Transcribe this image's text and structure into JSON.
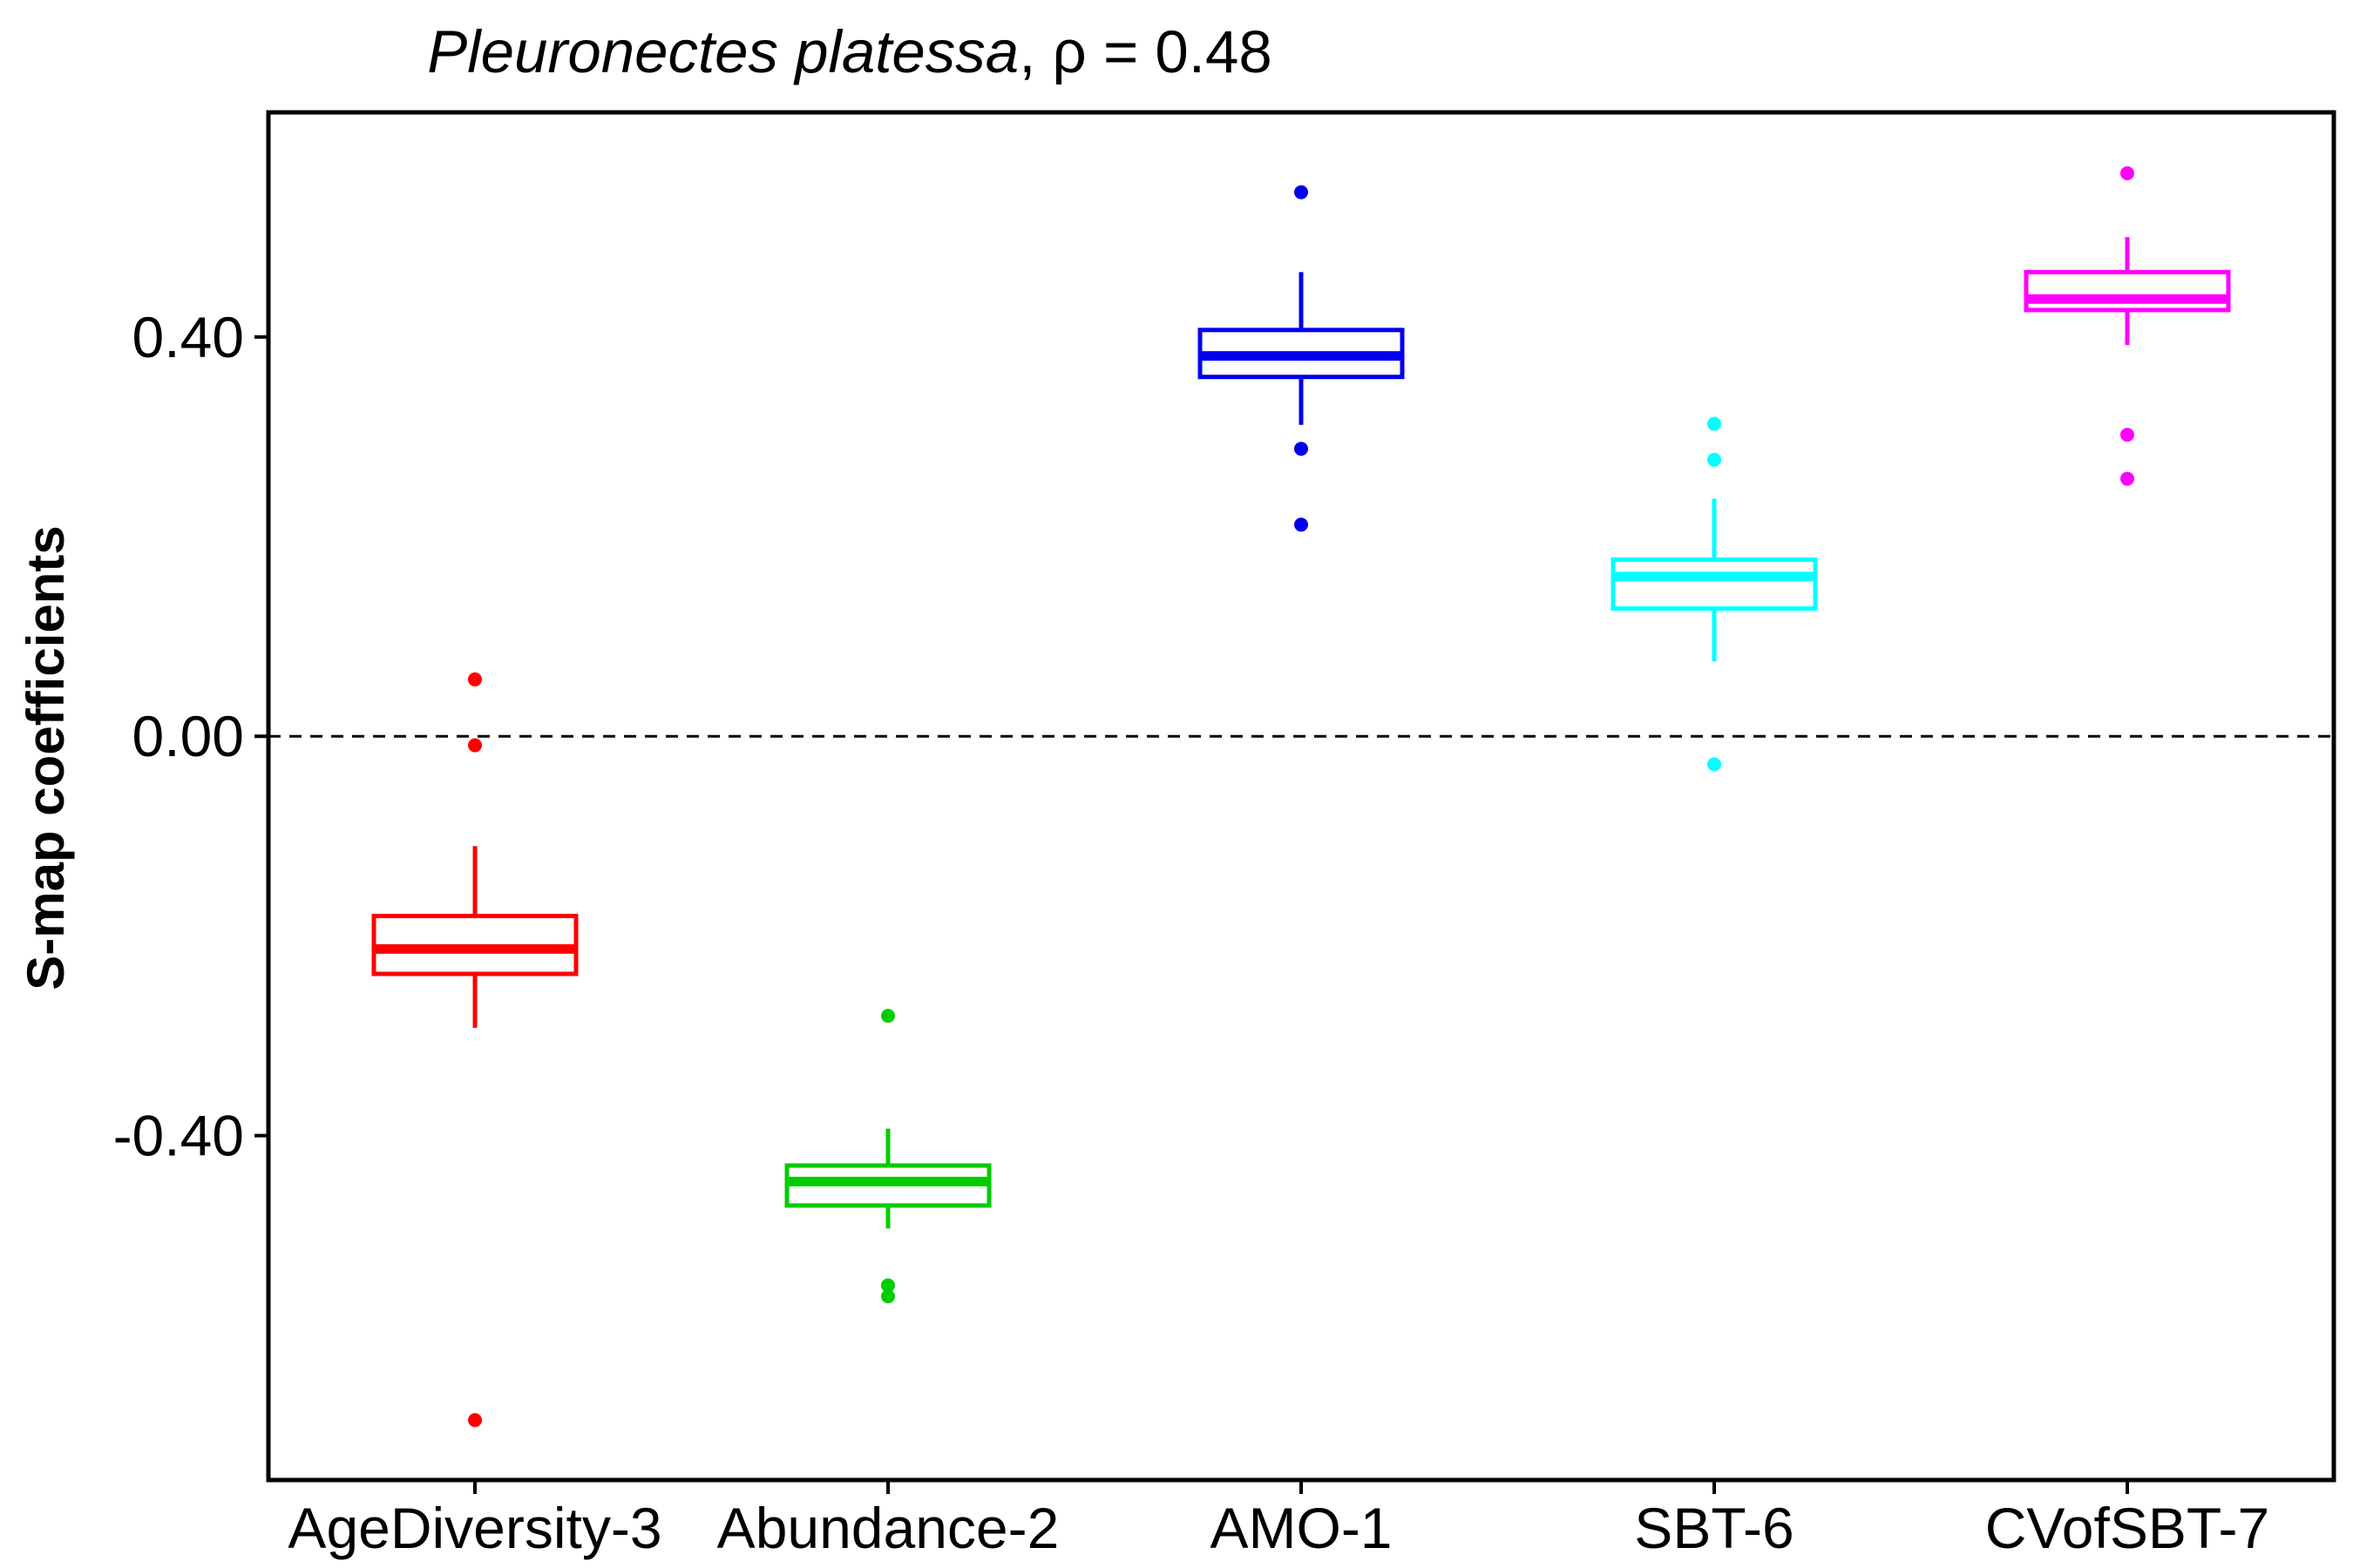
{
  "chart_data": {
    "type": "box",
    "title": {
      "species": "Pleuronectes platessa",
      "suffix": ", ρ = 0.48"
    },
    "xlabel": "",
    "ylabel": "S-map coefficients",
    "ylim": [
      -0.745,
      0.625
    ],
    "yticks": [
      {
        "value": 0.4,
        "label": "0.40"
      },
      {
        "value": 0.0,
        "label": "0.00"
      },
      {
        "value": -0.4,
        "label": "-0.40"
      }
    ],
    "reference_line": {
      "y": 0.0,
      "style": "dashed",
      "color": "#000000"
    },
    "grid": false,
    "legend": "none",
    "categories": [
      "AgeDiversity-3",
      "Abundance-2",
      "AMO-1",
      "SBT-6",
      "CVofSBT-7"
    ],
    "series": [
      {
        "category": "AgeDiversity-3",
        "color": "#ff0000",
        "whisker_low": -0.292,
        "q1": -0.238,
        "median": -0.213,
        "q3": -0.18,
        "whisker_high": -0.11,
        "outliers": [
          0.057,
          -0.009,
          -0.685
        ]
      },
      {
        "category": "Abundance-2",
        "color": "#00cd00",
        "whisker_low": -0.493,
        "q1": -0.47,
        "median": -0.446,
        "q3": -0.43,
        "whisker_high": -0.393,
        "outliers": [
          -0.28,
          -0.55,
          -0.561
        ]
      },
      {
        "category": "AMO-1",
        "color": "#0000ee",
        "whisker_low": 0.312,
        "q1": 0.36,
        "median": 0.381,
        "q3": 0.407,
        "whisker_high": 0.465,
        "outliers": [
          0.545,
          0.288,
          0.212
        ]
      },
      {
        "category": "SBT-6",
        "color": "#00ffff",
        "whisker_low": 0.075,
        "q1": 0.128,
        "median": 0.16,
        "q3": 0.177,
        "whisker_high": 0.238,
        "outliers": [
          0.313,
          0.277,
          -0.028
        ]
      },
      {
        "category": "CVofSBT-7",
        "color": "#ff00ff",
        "whisker_low": 0.392,
        "q1": 0.427,
        "median": 0.438,
        "q3": 0.465,
        "whisker_high": 0.5,
        "outliers": [
          0.564,
          0.302,
          0.258
        ]
      }
    ]
  }
}
